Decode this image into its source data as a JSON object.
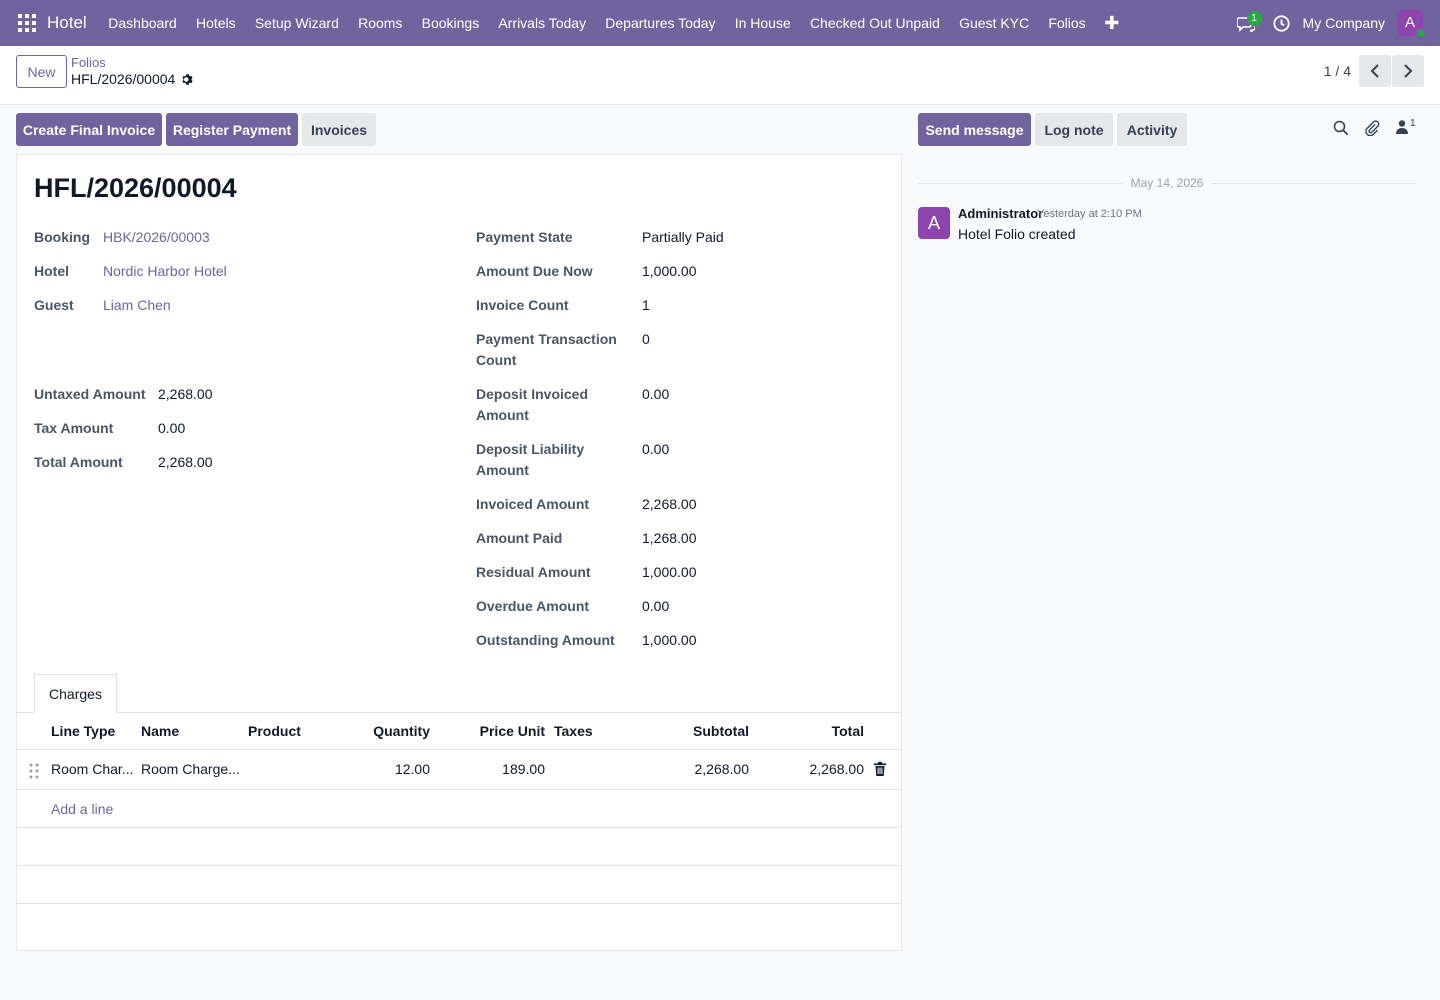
{
  "navbar": {
    "app_name": "Hotel",
    "menu": [
      "Dashboard",
      "Hotels",
      "Setup Wizard",
      "Rooms",
      "Bookings",
      "Arrivals Today",
      "Departures Today",
      "In House",
      "Checked Out Unpaid",
      "Guest KYC",
      "Folios"
    ],
    "plus": "✚",
    "chat_badge": "1",
    "company": "My Company",
    "avatar_letter": "A"
  },
  "control": {
    "new_label": "New",
    "breadcrumb_parent": "Folios",
    "breadcrumb_current": "HFL/2026/00004",
    "pager": "1 / 4"
  },
  "actions": {
    "create_final_invoice": "Create Final Invoice",
    "register_payment": "Register Payment",
    "invoices": "Invoices"
  },
  "form": {
    "title": "HFL/2026/00004",
    "left_fields": [
      {
        "label": "Booking",
        "value": "HBK/2026/00003"
      },
      {
        "label": "Hotel",
        "value": "Nordic Harbor Hotel"
      },
      {
        "label": "Guest",
        "value": "Liam Chen"
      }
    ],
    "amount_fields": [
      {
        "label": "Untaxed Amount",
        "value": "2,268.00"
      },
      {
        "label": "Tax Amount",
        "value": "0.00"
      },
      {
        "label": "Total Amount",
        "value": "2,268.00"
      }
    ],
    "right_fields": [
      {
        "label": "Payment State",
        "value": "Partially Paid"
      },
      {
        "label": "Amount Due Now",
        "value": "1,000.00"
      },
      {
        "label": "Invoice Count",
        "value": "1"
      },
      {
        "label": "Payment Transaction Count",
        "label_l1": "Payment Transaction",
        "label_l2": "Count",
        "value": "0"
      },
      {
        "label": "Deposit Invoiced Amount",
        "label_l1": "Deposit Invoiced",
        "label_l2": "Amount",
        "value": "0.00"
      },
      {
        "label": "Deposit Liability Amount",
        "label_l1": "Deposit Liability",
        "label_l2": "Amount",
        "value": "0.00"
      },
      {
        "label": "Invoiced Amount",
        "value": "2,268.00"
      },
      {
        "label": "Amount Paid",
        "value": "1,268.00"
      },
      {
        "label": "Residual Amount",
        "value": "1,000.00"
      },
      {
        "label": "Overdue Amount",
        "value": "0.00"
      },
      {
        "label": "Outstanding Amount",
        "value": "1,000.00"
      }
    ]
  },
  "charges": {
    "tab_label": "Charges",
    "columns": [
      "Line Type",
      "Name",
      "Product",
      "Quantity",
      "Price Unit",
      "Taxes",
      "Subtotal",
      "Total"
    ],
    "rows": [
      {
        "line_type": "Room Char...",
        "name": "Room Charge...",
        "product": "",
        "quantity": "12.00",
        "price_unit": "189.00",
        "taxes": "",
        "subtotal": "2,268.00",
        "total": "2,268.00"
      }
    ],
    "add_line": "Add a line"
  },
  "chatter": {
    "send_message": "Send message",
    "log_note": "Log note",
    "activity": "Activity",
    "followers_count": "1",
    "date_separator": "May 14, 2026",
    "messages": [
      {
        "avatar": "A",
        "author": "Administrator",
        "time": "Yesterday at 2:10 PM",
        "body": "Hotel Folio created"
      }
    ]
  }
}
